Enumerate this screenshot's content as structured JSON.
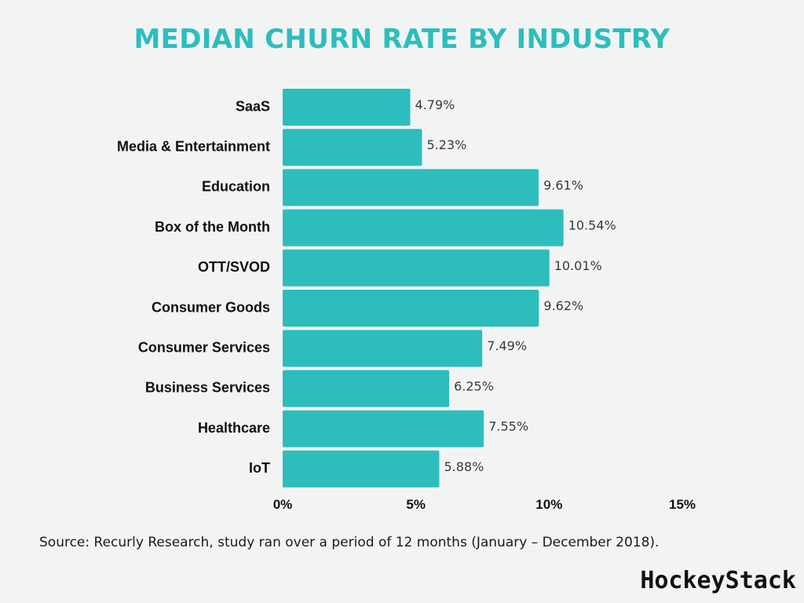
{
  "colors": {
    "accent": "#2dbdbd",
    "bar": "#2dbdbd",
    "background": "#f2f4f4",
    "label_text": "#111111",
    "value_text": "#3a3a3a"
  },
  "chart_data": {
    "type": "bar",
    "orientation": "horizontal",
    "title": "MEDIAN CHURN RATE BY INDUSTRY",
    "categories": [
      "SaaS",
      "Media & Entertainment",
      "Education",
      "Box of the Month",
      "OTT/SVOD",
      "Consumer Goods",
      "Consumer Services",
      "Business Services",
      "Healthcare",
      "IoT"
    ],
    "values": [
      4.79,
      5.23,
      9.61,
      10.54,
      10.01,
      9.62,
      7.49,
      6.25,
      7.55,
      5.88
    ],
    "value_labels": [
      "4.79%",
      "5.23%",
      "9.61%",
      "10.54%",
      "10.01%",
      "9.62%",
      "7.49%",
      "6.25%",
      "7.55%",
      "5.88%"
    ],
    "xlim": [
      0,
      15
    ],
    "x_ticks": [
      0,
      5,
      10,
      15
    ],
    "x_tick_labels": [
      "0%",
      "5%",
      "10%",
      "15%"
    ],
    "xlabel": "",
    "ylabel": "",
    "grid": false,
    "legend": "none"
  },
  "source_text": "Source: Recurly Research, study ran over a period of 12 months (January – December 2018).",
  "brand": "HockeyStack"
}
